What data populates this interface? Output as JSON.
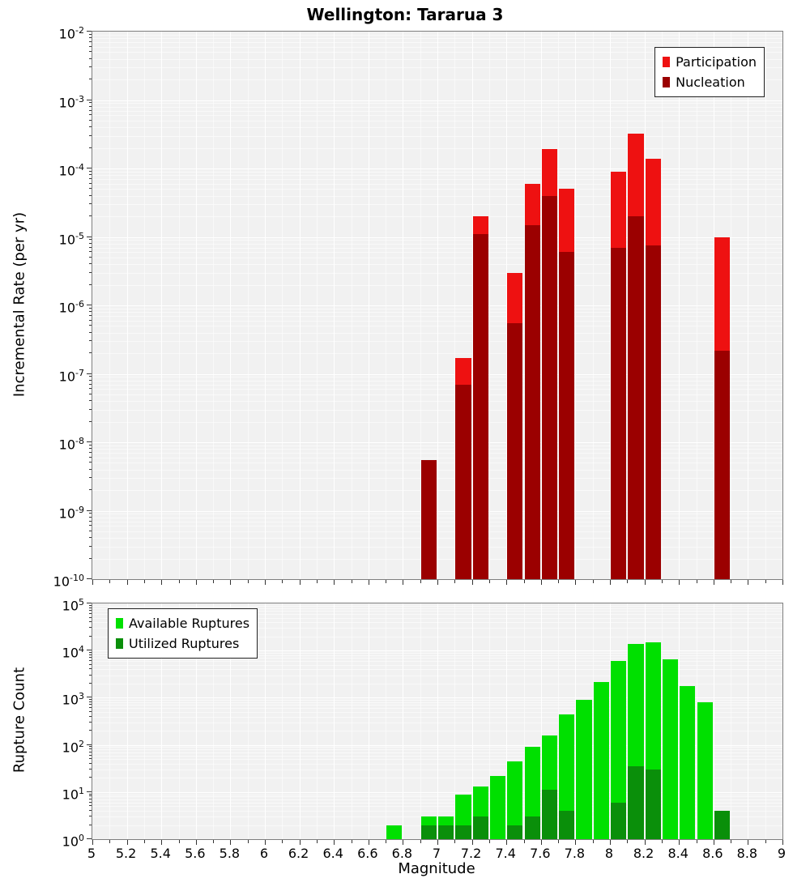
{
  "axes": {
    "log_base": "10",
    "x_label": "Magnitude",
    "x_ticks": [
      "5",
      "5.2",
      "5.4",
      "5.6",
      "5.8",
      "6",
      "6.2",
      "6.4",
      "6.6",
      "6.8",
      "7",
      "7.2",
      "7.4",
      "7.6",
      "7.8",
      "8",
      "8.2",
      "8.4",
      "8.6",
      "8.8",
      "9"
    ],
    "top_y_tick_exponents": [
      -2,
      -3,
      -4,
      -5,
      -6,
      -7,
      -8,
      -9,
      -10
    ],
    "bottom_y_tick_exponents": [
      5,
      4,
      3,
      2,
      1,
      0
    ]
  },
  "chart_data": [
    {
      "type": "bar",
      "panel": "incremental_rate",
      "title": "Wellington: Tararua 3",
      "xlabel": "Magnitude",
      "ylabel": "Incremental Rate (per yr)",
      "yscale": "log",
      "ylim": [
        1e-10,
        0.01
      ],
      "xlim": [
        5,
        9
      ],
      "bin_width": 0.1,
      "grid": true,
      "legend_position": "upper right",
      "series": [
        {
          "name": "Participation",
          "color": "#ee1111",
          "points": [
            [
              6.9,
              5.5e-09
            ],
            [
              7.1,
              1.7e-07
            ],
            [
              7.2,
              2e-05
            ],
            [
              7.4,
              3e-06
            ],
            [
              7.5,
              6e-05
            ],
            [
              7.6,
              0.00019
            ],
            [
              7.7,
              5e-05
            ],
            [
              8.0,
              9e-05
            ],
            [
              8.1,
              0.00032
            ],
            [
              8.2,
              0.00014
            ],
            [
              8.6,
              1e-05
            ]
          ]
        },
        {
          "name": "Nucleation",
          "color": "#9b0000",
          "points": [
            [
              6.9,
              5.5e-09
            ],
            [
              7.1,
              7e-08
            ],
            [
              7.2,
              1.1e-05
            ],
            [
              7.4,
              5.5e-07
            ],
            [
              7.5,
              1.5e-05
            ],
            [
              7.6,
              4e-05
            ],
            [
              7.7,
              6e-06
            ],
            [
              8.0,
              7e-06
            ],
            [
              8.1,
              2e-05
            ],
            [
              8.2,
              7.5e-06
            ],
            [
              8.6,
              2.2e-07
            ]
          ]
        }
      ]
    },
    {
      "type": "bar",
      "panel": "rupture_count",
      "xlabel": "Magnitude",
      "ylabel": "Rupture Count",
      "yscale": "log",
      "ylim": [
        1,
        100000
      ],
      "xlim": [
        5,
        9
      ],
      "bin_width": 0.1,
      "grid": true,
      "legend_position": "upper left",
      "series": [
        {
          "name": "Available Ruptures",
          "color": "#00e000",
          "points": [
            [
              6.7,
              2
            ],
            [
              6.9,
              3
            ],
            [
              7.0,
              3
            ],
            [
              7.1,
              9
            ],
            [
              7.2,
              13
            ],
            [
              7.3,
              22
            ],
            [
              7.4,
              45
            ],
            [
              7.5,
              90
            ],
            [
              7.6,
              160
            ],
            [
              7.7,
              450
            ],
            [
              7.8,
              900
            ],
            [
              7.9,
              2200
            ],
            [
              8.0,
              6000
            ],
            [
              8.1,
              14000
            ],
            [
              8.2,
              15000
            ],
            [
              8.3,
              6500
            ],
            [
              8.4,
              1800
            ],
            [
              8.5,
              800
            ],
            [
              8.6,
              4
            ]
          ]
        },
        {
          "name": "Utilized Ruptures",
          "color": "#0a8f0a",
          "points": [
            [
              6.9,
              2
            ],
            [
              7.0,
              2
            ],
            [
              7.1,
              2
            ],
            [
              7.2,
              3
            ],
            [
              7.4,
              2
            ],
            [
              7.5,
              3
            ],
            [
              7.6,
              11
            ],
            [
              7.7,
              4
            ],
            [
              8.0,
              6
            ],
            [
              8.1,
              35
            ],
            [
              8.2,
              30
            ],
            [
              8.6,
              4
            ]
          ]
        }
      ]
    }
  ]
}
